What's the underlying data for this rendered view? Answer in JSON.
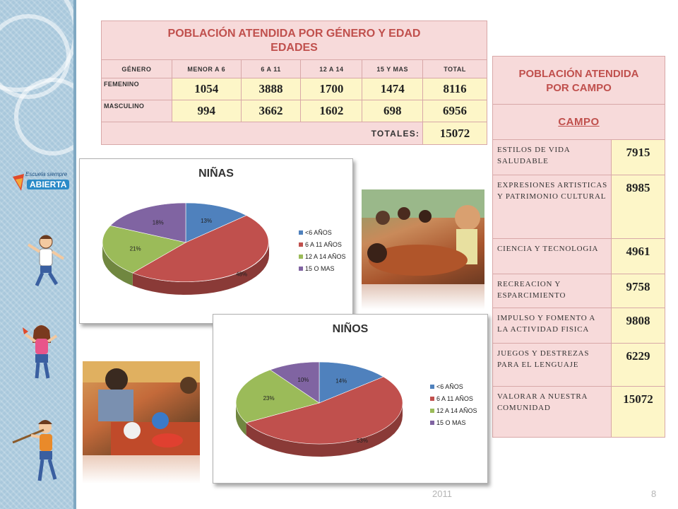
{
  "table_genero": {
    "title_line1": "POBLACIÓN ATENDIDA POR GÉNERO Y EDAD",
    "title_line2": "EDADES",
    "headers": [
      "GÉNERO",
      "MENOR A 6",
      "6 A 11",
      "12 A 14",
      "15 Y MAS",
      "TOTAL"
    ],
    "rows": [
      {
        "label": "FEMENINO",
        "values": [
          "1054",
          "3888",
          "1700",
          "1474",
          "8116"
        ]
      },
      {
        "label": "MASCULINO",
        "values": [
          "994",
          "3662",
          "1602",
          "698",
          "6956"
        ]
      }
    ],
    "totals_label": "TOTALES:",
    "totals_value": "15072"
  },
  "table_campo": {
    "title_line1": "POBLACIÓN ATENDIDA",
    "title_line2": "POR CAMPO",
    "header": "CAMPO",
    "rows": [
      {
        "label": "ESTILOS DE VIDA SALUDABLE",
        "value": "7915"
      },
      {
        "label": "EXPRESIONES ARTISTICAS Y PATRIMONIO CULTURAL",
        "value": "8985"
      },
      {
        "label": "CIENCIA Y TECNOLOGIA",
        "value": "4961"
      },
      {
        "label": "RECREACION Y ESPARCIMIENTO",
        "value": "9758"
      },
      {
        "label": "IMPULSO Y FOMENTO A LA ACTIVIDAD FISICA",
        "value": "9808"
      },
      {
        "label": "JUEGOS Y DESTREZAS PARA EL LENGUAJE",
        "value": "6229"
      },
      {
        "label": "VALORAR A NUESTRA COMUNIDAD",
        "value": "15072"
      }
    ]
  },
  "logo": {
    "line1": "Escuela siempre",
    "line2": "ABIERTA"
  },
  "colors": {
    "blue": "#4f81bd",
    "red": "#c0504d",
    "green": "#9bbb59",
    "purple": "#8064a2"
  },
  "chart_data": [
    {
      "type": "pie",
      "title": "NIÑAS",
      "categories": [
        "<6 AÑOS",
        "6 A 11 AÑOS",
        "12 A 14 AÑOS",
        "15 O MAS"
      ],
      "values": [
        13,
        48,
        21,
        18
      ],
      "labels": [
        "13%",
        "48%",
        "21%",
        "18%"
      ],
      "legend_position": "right"
    },
    {
      "type": "pie",
      "title": "NIÑOS",
      "categories": [
        "<6 AÑOS",
        "6 A 11 AÑOS",
        "12 A 14 AÑOS",
        "15 O MAS"
      ],
      "values": [
        14,
        53,
        23,
        10
      ],
      "labels": [
        "14%",
        "53%",
        "23%",
        "10%"
      ],
      "legend_position": "right"
    }
  ],
  "footer": {
    "year": "2011",
    "page": "8"
  }
}
